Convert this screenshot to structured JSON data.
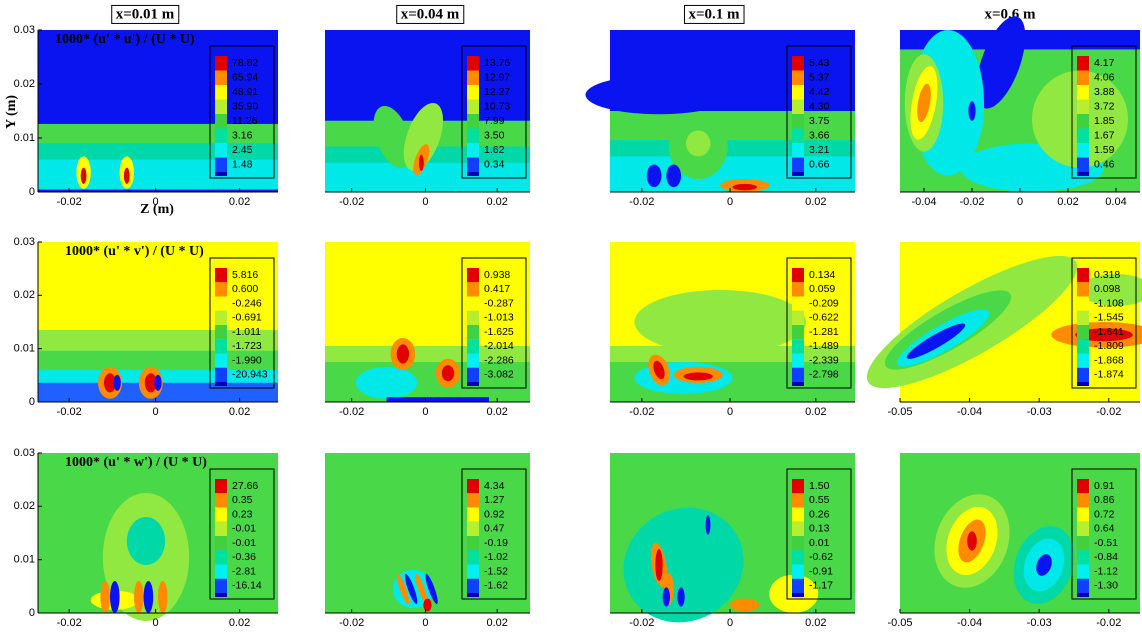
{
  "columns": [
    "x=0.01 m",
    "x=0.04 m",
    "x=0.1 m",
    "x=0.6 m"
  ],
  "axis_labels": {
    "y": "Y (m)",
    "x": "Z (m)"
  },
  "rows": [
    {
      "title": "1000* (u' * u') / (U * U)",
      "yticks": [
        "0.03",
        "0.02",
        "0.01",
        "0"
      ],
      "panels": [
        {
          "xticks": [
            "-0.02",
            "0",
            "0.02"
          ],
          "levels": [
            "78.82",
            "65.94",
            "48.91",
            "35.90",
            "11.26",
            "3.16",
            "2.45",
            "1.48"
          ]
        },
        {
          "xticks": [
            "-0.02",
            "0",
            "0.02"
          ],
          "levels": [
            "13.76",
            "12.97",
            "12.27",
            "10.73",
            "7.99",
            "3.50",
            "1.62",
            "0.34"
          ]
        },
        {
          "xticks": [
            "-0.02",
            "0",
            "0.02"
          ],
          "levels": [
            "5.43",
            "5.37",
            "4.42",
            "4.30",
            "3.75",
            "3.66",
            "3.21",
            "0.66"
          ]
        },
        {
          "xticks": [
            "-0.04",
            "-0.02",
            "0",
            "0.02",
            "0.04"
          ],
          "levels": [
            "4.17",
            "4.06",
            "3.88",
            "3.72",
            "1.85",
            "1.67",
            "1.59",
            "0.46"
          ]
        }
      ]
    },
    {
      "title": "1000* (u' * v') / (U * U)",
      "yticks": [
        "0.03",
        "0.02",
        "0.01",
        "0"
      ],
      "panels": [
        {
          "xticks": [
            "-0.02",
            "0",
            "0.02"
          ],
          "levels": [
            "5.816",
            "0.600",
            "-0.246",
            "-0.691",
            "-1.011",
            "-1.723",
            "-1.990",
            "-20.943"
          ]
        },
        {
          "xticks": [
            "-0.02",
            "0",
            "0.02"
          ],
          "levels": [
            "0.938",
            "0.417",
            "-0.287",
            "-1.013",
            "-1.625",
            "-2.014",
            "-2.286",
            "-3.082"
          ]
        },
        {
          "xticks": [
            "-0.02",
            "0",
            "0.02"
          ],
          "levels": [
            "0.134",
            "0.059",
            "-0.209",
            "-0.622",
            "-1.281",
            "-1.489",
            "-2.339",
            "-2.798"
          ]
        },
        {
          "xticks": [
            "-0.05",
            "-0.04",
            "-0.03",
            "-0.02"
          ],
          "levels": [
            "0.318",
            "0.098",
            "-1.108",
            "-1.545",
            "-1.641",
            "-1.809",
            "-1.868",
            "-1.874"
          ]
        }
      ]
    },
    {
      "title": "1000* (u' * w') / (U * U)",
      "yticks": [
        "0.03",
        "0.02",
        "0.01",
        "0"
      ],
      "panels": [
        {
          "xticks": [
            "-0.02",
            "0",
            "0.02"
          ],
          "levels": [
            "27.66",
            "0.35",
            "0.23",
            "-0.01",
            "-0.01",
            "-0.36",
            "-2.81",
            "-16.14"
          ]
        },
        {
          "xticks": [
            "-0.02",
            "0",
            "0.02"
          ],
          "levels": [
            "4.34",
            "1.27",
            "0.92",
            "0.47",
            "-0.19",
            "-1.02",
            "-1.52",
            "-1.62"
          ]
        },
        {
          "xticks": [
            "-0.02",
            "0",
            "0.02"
          ],
          "levels": [
            "1.50",
            "0.55",
            "0.26",
            "0.13",
            "0.01",
            "-0.62",
            "-0.91",
            "-1.17"
          ]
        },
        {
          "xticks": [
            "-0.05",
            "-0.04",
            "-0.03",
            "-0.02"
          ],
          "levels": [
            "0.91",
            "0.86",
            "0.72",
            "0.64",
            "-0.51",
            "-0.84",
            "-1.12",
            "-1.30"
          ]
        }
      ]
    }
  ]
}
